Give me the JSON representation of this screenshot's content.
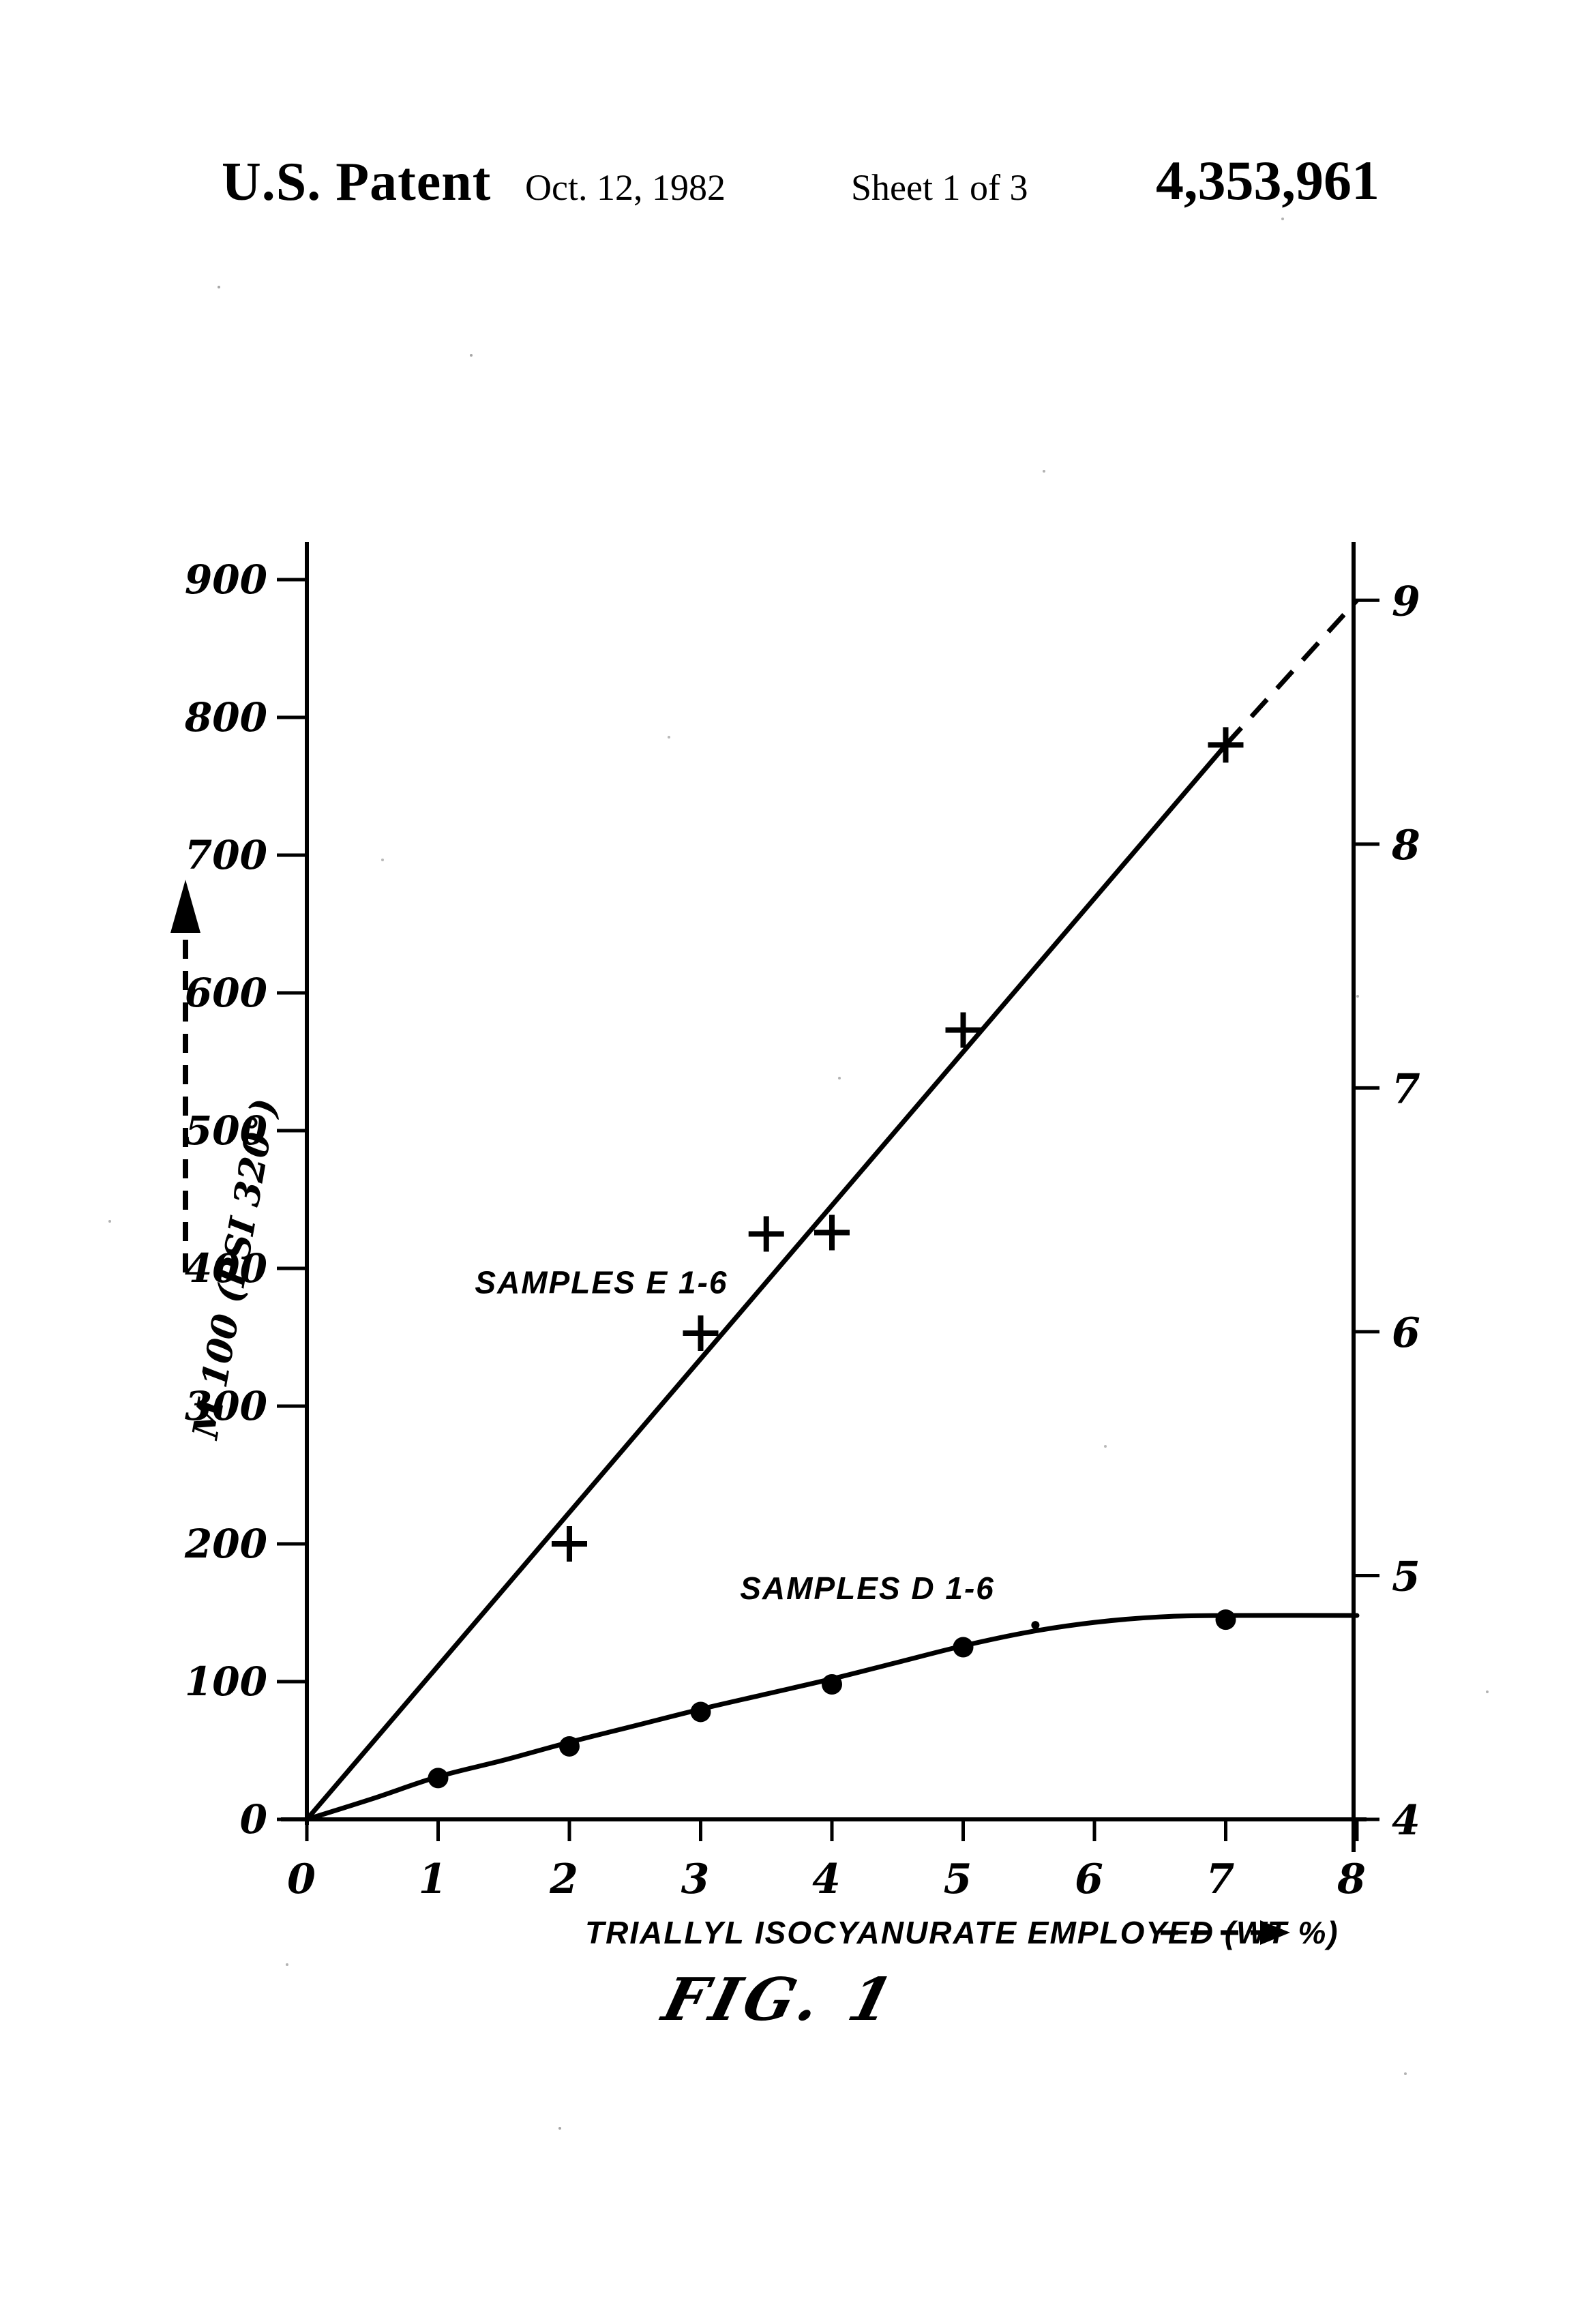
{
  "header": {
    "title": "U.S. Patent",
    "date": "Oct. 12, 1982",
    "sheet": "Sheet 1 of 3",
    "patent_number": "4,353,961"
  },
  "figure_label": "FIG. 1",
  "chart_data": {
    "type": "line",
    "title": "",
    "xlabel": "TRIALLYL ISOCYANURATE EMPLOYED (WT %)",
    "ylabel_left": "M 100 (PSI 320°)",
    "xlim": [
      0,
      8
    ],
    "ylim_left": [
      0,
      930
    ],
    "grid": false,
    "ink_color": "#000000",
    "x_ticks": [
      0,
      1,
      2,
      3,
      4,
      5,
      6,
      7,
      8
    ],
    "y_ticks_left": [
      0,
      100,
      200,
      300,
      400,
      500,
      600,
      700,
      800,
      900
    ],
    "y_ticks_right": {
      "labels": [
        4,
        5,
        6,
        7,
        8,
        9
      ],
      "positions_left_units": [
        0,
        177,
        354,
        531,
        708,
        885
      ]
    },
    "series": [
      {
        "name": "SAMPLES E 1-6",
        "marker": "plus",
        "points": [
          [
            2,
            200
          ],
          [
            3,
            353
          ],
          [
            3.5,
            425
          ],
          [
            4,
            426
          ],
          [
            5,
            573
          ],
          [
            7,
            780
          ]
        ],
        "line_solid": [
          [
            0,
            0
          ],
          [
            7,
            780
          ]
        ],
        "line_dashed": [
          [
            7,
            780
          ],
          [
            8,
            885
          ]
        ],
        "label_anchor": [
          1.28,
          382
        ]
      },
      {
        "name": "SAMPLES D 1-6",
        "marker": "dot",
        "points": [
          [
            1,
            30
          ],
          [
            2,
            53
          ],
          [
            3,
            78
          ],
          [
            4,
            98
          ],
          [
            5,
            125
          ],
          [
            7,
            145
          ]
        ],
        "curve": [
          [
            0,
            0
          ],
          [
            0.5,
            15
          ],
          [
            1,
            31
          ],
          [
            1.5,
            43
          ],
          [
            2,
            56
          ],
          [
            2.5,
            68
          ],
          [
            3,
            80
          ],
          [
            3.5,
            91
          ],
          [
            4,
            102
          ],
          [
            4.5,
            114
          ],
          [
            5,
            126
          ],
          [
            5.5,
            136
          ],
          [
            6,
            143
          ],
          [
            6.5,
            147
          ],
          [
            7,
            148
          ],
          [
            8,
            148
          ]
        ],
        "stray_dot": [
          5.55,
          141
        ],
        "label_anchor": [
          3.3,
          160
        ]
      }
    ]
  }
}
